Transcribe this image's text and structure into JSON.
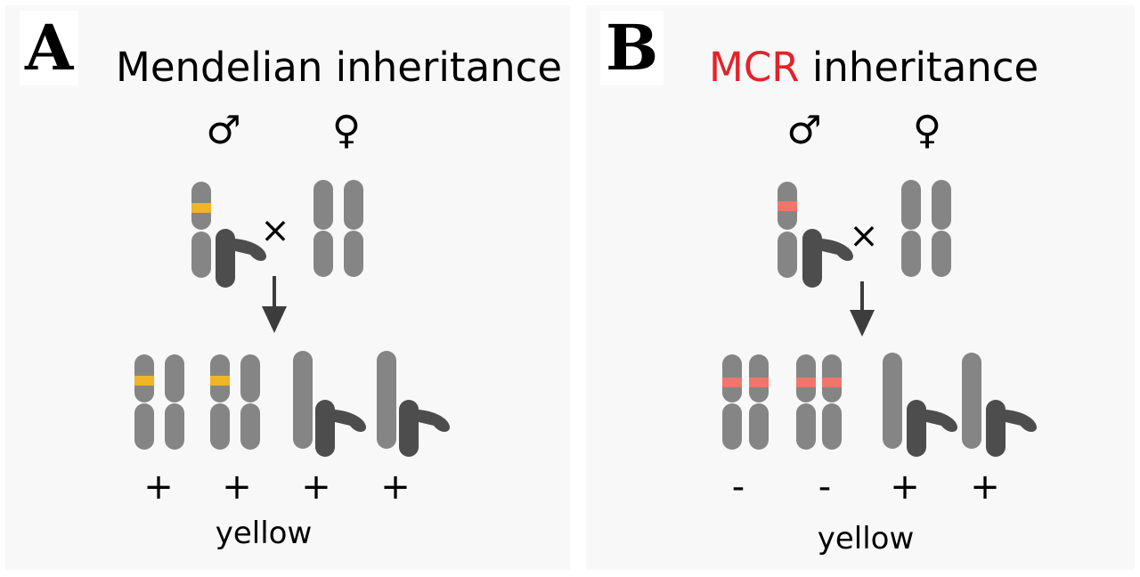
{
  "panels": [
    {
      "letter": "A",
      "title": "Mendelian inheritance",
      "male_symbol": "♂",
      "female_symbol": "♀",
      "cross_symbol": "×",
      "signs": [
        "+",
        "+",
        "+",
        "+"
      ],
      "phenotype_label": "yellow",
      "colors": {
        "marker": "#f0b429",
        "chromosome": "#858585",
        "y_chromosome": "#4d4d4d"
      }
    },
    {
      "letter": "B",
      "title_highlight": "MCR",
      "title_rest": " inheritance",
      "male_symbol": "♂",
      "female_symbol": "♀",
      "cross_symbol": "×",
      "signs": [
        "-",
        "-",
        "+",
        "+"
      ],
      "phenotype_label": "yellow",
      "colors": {
        "marker": "#f2756a",
        "chromosome": "#858585",
        "y_chromosome": "#4d4d4d"
      }
    }
  ]
}
